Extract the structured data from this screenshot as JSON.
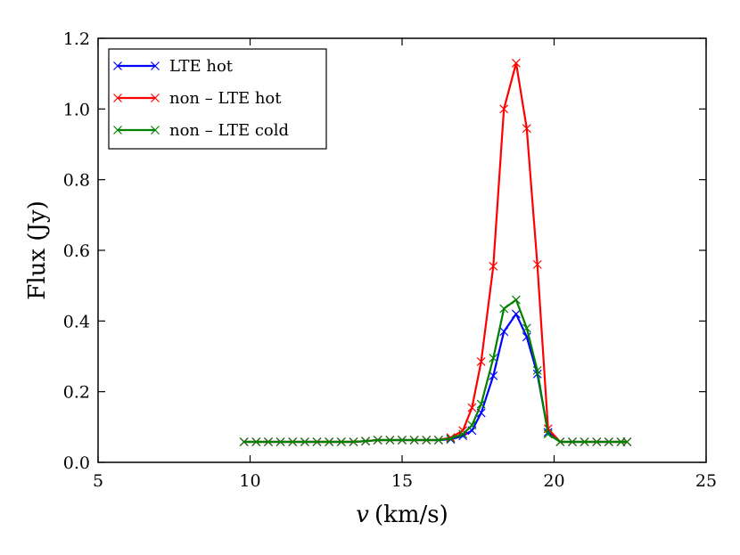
{
  "chart_data": {
    "type": "line",
    "xlabel_symbol": "v",
    "xlabel_unit": "(km/s)",
    "ylabel": "Flux (Jy)",
    "xlim": [
      5,
      25
    ],
    "ylim": [
      0.0,
      1.2
    ],
    "xticks": [
      5,
      10,
      15,
      20,
      25
    ],
    "xtick_labels": [
      "5",
      "10",
      "15",
      "20",
      "25"
    ],
    "yticks": [
      0.0,
      0.2,
      0.4,
      0.6,
      0.8,
      1.0,
      1.2
    ],
    "ytick_labels": [
      "0.0",
      "0.2",
      "0.4",
      "0.6",
      "0.8",
      "1.0",
      "1.2"
    ],
    "grid": false,
    "legend_position": "top-left",
    "x": [
      9.8,
      10.2,
      10.6,
      11.0,
      11.4,
      11.8,
      12.2,
      12.6,
      13.0,
      13.4,
      13.8,
      14.2,
      14.6,
      15.0,
      15.4,
      15.8,
      16.2,
      16.6,
      17.0,
      17.3,
      17.6,
      18.0,
      18.35,
      18.75,
      19.1,
      19.45,
      19.8,
      20.2,
      20.6,
      21.0,
      21.4,
      21.8,
      22.2,
      22.4
    ],
    "series": [
      {
        "name": "LTE hot",
        "color": "#0000ff",
        "values": [
          0.058,
          0.058,
          0.058,
          0.058,
          0.058,
          0.058,
          0.058,
          0.058,
          0.058,
          0.058,
          0.06,
          0.063,
          0.063,
          0.063,
          0.063,
          0.063,
          0.063,
          0.065,
          0.075,
          0.09,
          0.14,
          0.245,
          0.37,
          0.42,
          0.355,
          0.25,
          0.085,
          0.058,
          0.058,
          0.058,
          0.058,
          0.058,
          0.058,
          0.058
        ]
      },
      {
        "name": "non – LTE hot",
        "color": "#ff0000",
        "values": [
          0.058,
          0.058,
          0.058,
          0.058,
          0.058,
          0.058,
          0.058,
          0.058,
          0.058,
          0.058,
          0.06,
          0.063,
          0.063,
          0.063,
          0.063,
          0.063,
          0.063,
          0.07,
          0.09,
          0.155,
          0.285,
          0.555,
          1.0,
          1.13,
          0.945,
          0.56,
          0.095,
          0.058,
          0.058,
          0.058,
          0.058,
          0.058,
          0.058,
          0.058
        ]
      },
      {
        "name": "non – LTE cold",
        "color": "#008000",
        "values": [
          0.058,
          0.058,
          0.058,
          0.058,
          0.058,
          0.058,
          0.058,
          0.058,
          0.058,
          0.058,
          0.06,
          0.063,
          0.063,
          0.063,
          0.063,
          0.063,
          0.063,
          0.067,
          0.08,
          0.105,
          0.165,
          0.295,
          0.435,
          0.46,
          0.38,
          0.26,
          0.08,
          0.058,
          0.058,
          0.058,
          0.058,
          0.058,
          0.058,
          0.058
        ]
      }
    ]
  }
}
